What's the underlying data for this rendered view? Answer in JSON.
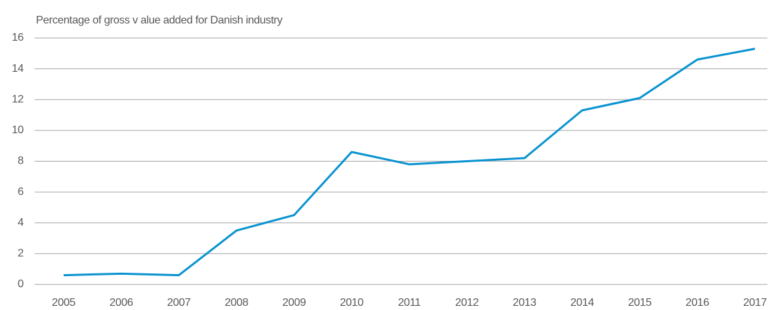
{
  "chart_data": {
    "type": "line",
    "title": "Percentage of gross v alue added for Danish industry",
    "categories": [
      "2005",
      "2006",
      "2007",
      "2008",
      "2009",
      "2010",
      "2011",
      "2012",
      "2013",
      "2014",
      "2015",
      "2016",
      "2017"
    ],
    "series": [
      {
        "name": "Danish industry",
        "color": "#0a93d1",
        "values": [
          0.6,
          0.7,
          0.6,
          3.5,
          4.5,
          8.6,
          7.8,
          8.0,
          8.2,
          11.3,
          12.1,
          14.6,
          15.3
        ]
      }
    ],
    "ylim": [
      0,
      16
    ],
    "yticks": [
      0,
      2,
      4,
      6,
      8,
      10,
      12,
      14,
      16
    ],
    "grid": true
  }
}
